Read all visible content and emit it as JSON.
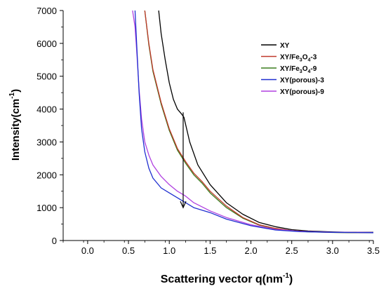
{
  "chart_data": {
    "type": "line",
    "xlabel": "Scattering vector q(nm",
    "xlabel_sup": "-1",
    "xlabel_tail": ")",
    "ylabel": "Intensity(cm",
    "ylabel_sup": "-1",
    "ylabel_tail": ")",
    "xlim": [
      -0.3,
      3.5
    ],
    "ylim": [
      0,
      7000
    ],
    "xticks": [
      {
        "value": 0.0,
        "label": "0.0"
      },
      {
        "value": 0.5,
        "label": "0.5"
      },
      {
        "value": 1.0,
        "label": "1.0"
      },
      {
        "value": 1.5,
        "label": "1.5"
      },
      {
        "value": 2.0,
        "label": "2.0"
      },
      {
        "value": 2.5,
        "label": "2.5"
      },
      {
        "value": 3.0,
        "label": "3.0"
      },
      {
        "value": 3.5,
        "label": "3.5"
      }
    ],
    "yticks": [
      {
        "value": 0,
        "label": "0"
      },
      {
        "value": 1000,
        "label": "1000"
      },
      {
        "value": 2000,
        "label": "2000"
      },
      {
        "value": 3000,
        "label": "3000"
      },
      {
        "value": 4000,
        "label": "4000"
      },
      {
        "value": 5000,
        "label": "5000"
      },
      {
        "value": 6000,
        "label": "6000"
      },
      {
        "value": 7000,
        "label": "7000"
      }
    ],
    "grid": false,
    "legend_position": "top-right",
    "series": [
      {
        "name": "XY",
        "legend_parts": [
          {
            "t": "XY"
          }
        ],
        "color": "#000000",
        "x": [
          0.87,
          0.9,
          0.95,
          1.0,
          1.05,
          1.1,
          1.15,
          1.18,
          1.25,
          1.35,
          1.5,
          1.7,
          1.9,
          2.1,
          2.3,
          2.5,
          2.7,
          3.0,
          3.2,
          3.5
        ],
        "y": [
          7000,
          6300,
          5500,
          4800,
          4300,
          4000,
          3850,
          3750,
          3000,
          2300,
          1700,
          1150,
          800,
          550,
          420,
          330,
          290,
          260,
          250,
          250
        ]
      },
      {
        "name": "XY/Fe3O4-3",
        "legend_parts": [
          {
            "t": "XY/Fe"
          },
          {
            "t": "3",
            "sub": true
          },
          {
            "t": "O"
          },
          {
            "t": "4",
            "sub": true
          },
          {
            "t": "-3"
          }
        ],
        "color": "#c0392b",
        "x": [
          0.7,
          0.75,
          0.8,
          0.9,
          1.0,
          1.1,
          1.2,
          1.3,
          1.4,
          1.5,
          1.7,
          1.9,
          2.1,
          2.3,
          2.5,
          2.7,
          3.0,
          3.2,
          3.5
        ],
        "y": [
          7000,
          6000,
          5200,
          4200,
          3400,
          2800,
          2400,
          2050,
          1800,
          1500,
          1050,
          700,
          480,
          370,
          300,
          270,
          250,
          245,
          240
        ]
      },
      {
        "name": "XY/Fe3O4-9",
        "legend_parts": [
          {
            "t": "XY/Fe"
          },
          {
            "t": "3",
            "sub": true
          },
          {
            "t": "O"
          },
          {
            "t": "4",
            "sub": true
          },
          {
            "t": "-9"
          }
        ],
        "color": "#3a7d1e",
        "x": [
          0.7,
          0.75,
          0.8,
          0.9,
          1.0,
          1.1,
          1.2,
          1.3,
          1.4,
          1.5,
          1.7,
          1.9,
          2.1,
          2.3,
          2.5,
          2.7,
          3.0,
          3.2,
          3.5
        ],
        "y": [
          7000,
          5950,
          5150,
          4150,
          3350,
          2750,
          2350,
          2000,
          1750,
          1450,
          1000,
          680,
          470,
          360,
          295,
          265,
          245,
          240,
          235
        ]
      },
      {
        "name": "XY(porous)-3",
        "legend_parts": [
          {
            "t": "XY(porous)-3"
          }
        ],
        "color": "#1f2fd0",
        "x": [
          0.58,
          0.6,
          0.63,
          0.66,
          0.7,
          0.75,
          0.8,
          0.9,
          1.0,
          1.1,
          1.2,
          1.3,
          1.5,
          1.7,
          2.0,
          2.3,
          2.6,
          3.0,
          3.5
        ],
        "y": [
          7000,
          6000,
          4500,
          3400,
          2700,
          2200,
          1900,
          1600,
          1450,
          1300,
          1150,
          1000,
          850,
          650,
          450,
          320,
          270,
          250,
          240
        ]
      },
      {
        "name": "XY(porous)-9",
        "legend_parts": [
          {
            "t": "XY(porous)-9"
          }
        ],
        "color": "#b040e0",
        "x": [
          0.55,
          0.58,
          0.6,
          0.63,
          0.66,
          0.7,
          0.75,
          0.8,
          0.9,
          1.0,
          1.1,
          1.2,
          1.3,
          1.5,
          1.7,
          2.0,
          2.3,
          2.6,
          3.0,
          3.5
        ],
        "y": [
          7000,
          6500,
          5800,
          4600,
          3700,
          3000,
          2600,
          2300,
          1950,
          1700,
          1500,
          1350,
          1150,
          900,
          700,
          480,
          340,
          280,
          255,
          245
        ]
      }
    ],
    "annotation_arrow": {
      "x": 1.17,
      "y_start": 3900,
      "y_end": 1000
    }
  }
}
